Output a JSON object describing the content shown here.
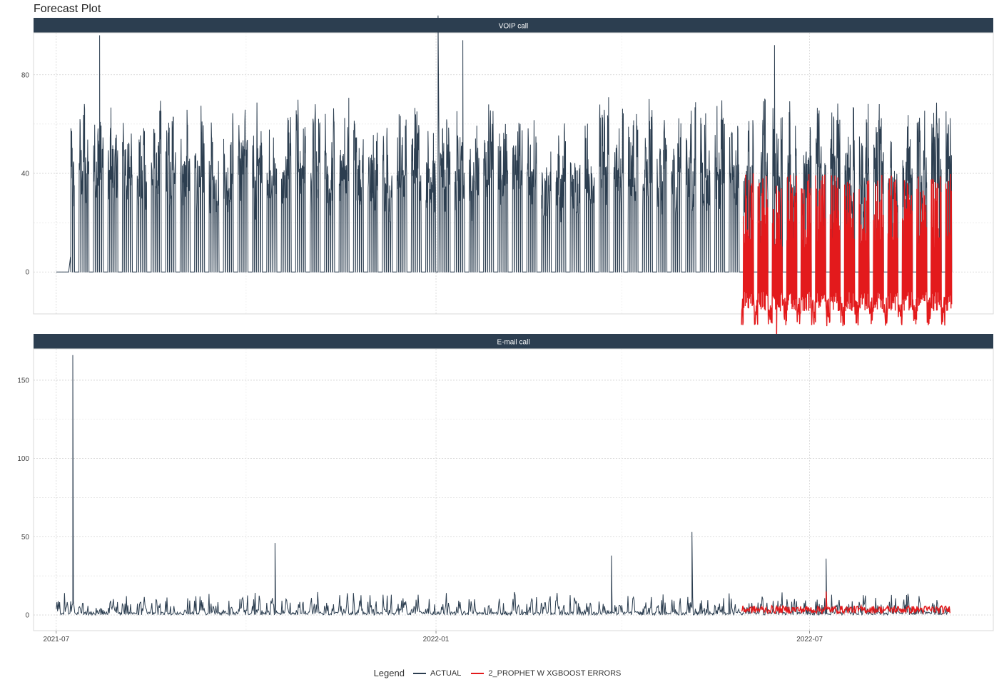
{
  "title": "Forecast Plot",
  "legend": {
    "title": "Legend",
    "items": [
      {
        "label": "ACTUAL",
        "color": "#2c3e50"
      },
      {
        "label": "2_PROPHET W XGBOOST ERRORS",
        "color": "#e31a1c"
      }
    ]
  },
  "x_ticks": [
    "2021-07",
    "2022-01",
    "2022-07"
  ],
  "chart_data": [
    {
      "type": "line",
      "panel_title": "VOIP call",
      "x_range": [
        "2021-06-20",
        "2022-09-28"
      ],
      "ylim": [
        -17,
        97
      ],
      "y_ticks": [
        0,
        40,
        80
      ],
      "grid": true,
      "series": [
        {
          "name": "ACTUAL",
          "color": "#2c3e50",
          "description_values": {
            "start": "2021-07-01",
            "end": "2022-09-07",
            "weekday_peak_range": [
              40,
              96
            ],
            "weekend_value": 0,
            "max": 104,
            "max_date": "2022-01-02"
          }
        },
        {
          "name": "2_PROPHET W XGBOOST ERRORS",
          "color": "#e31a1c",
          "description_values": {
            "start": "2022-05-29",
            "end": "2022-09-07",
            "peak_range": [
              25,
              45
            ],
            "trough_range": [
              -27,
              -10
            ]
          }
        }
      ],
      "key_points": [
        {
          "x": "2021-07-22",
          "y": 96
        },
        {
          "x": "2022-01-02",
          "y": 104
        },
        {
          "x": "2022-01-14",
          "y": 94
        },
        {
          "x": "2022-06-14",
          "y": 92
        },
        {
          "x": "2022-06-15",
          "y": -28
        }
      ]
    },
    {
      "type": "line",
      "panel_title": "E-mail call",
      "x_range": [
        "2021-06-20",
        "2022-09-28"
      ],
      "ylim": [
        -10,
        170
      ],
      "y_ticks": [
        0,
        50,
        100,
        150
      ],
      "grid": true,
      "series": [
        {
          "name": "ACTUAL",
          "color": "#2c3e50",
          "description_values": {
            "start": "2021-07-01",
            "end": "2022-09-07",
            "typical_range": [
              0,
              15
            ]
          }
        },
        {
          "name": "2_PROPHET W XGBOOST ERRORS",
          "color": "#e31a1c",
          "description_values": {
            "start": "2022-05-29",
            "end": "2022-09-07",
            "typical_range": [
              1,
              8
            ]
          }
        }
      ],
      "key_points": [
        {
          "x": "2021-07-09",
          "y": 166
        },
        {
          "x": "2021-10-15",
          "y": 46
        },
        {
          "x": "2022-03-27",
          "y": 38
        },
        {
          "x": "2022-05-05",
          "y": 53
        },
        {
          "x": "2022-07-09",
          "y": 36
        }
      ]
    }
  ]
}
